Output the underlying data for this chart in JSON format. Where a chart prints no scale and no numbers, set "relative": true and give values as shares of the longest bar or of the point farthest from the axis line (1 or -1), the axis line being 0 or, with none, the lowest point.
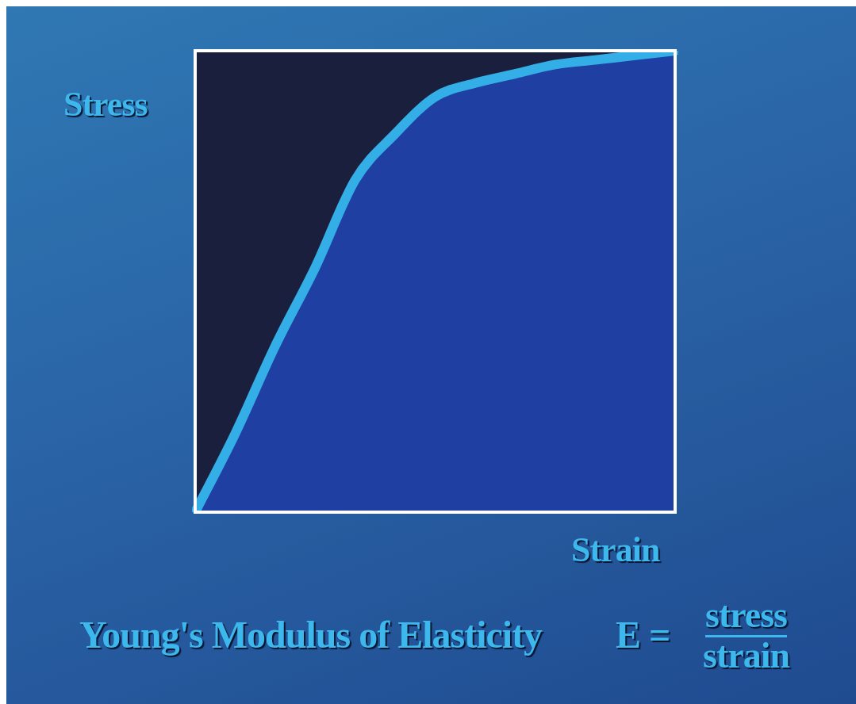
{
  "chart_data": {
    "type": "area",
    "relative": true,
    "title": "Young's Modulus of Elasticity",
    "xlabel": "Strain",
    "ylabel": "Stress",
    "annotations": [
      "E =",
      "stress",
      "strain"
    ],
    "categories": [
      null,
      null,
      null,
      null,
      null,
      null,
      null,
      null,
      null,
      null,
      null,
      null,
      null
    ],
    "series": [
      {
        "color": "#33aee6",
        "values": [
          0,
          0.17,
          0.36,
          0.53,
          0.72,
          0.82,
          0.9,
          0.93,
          0.95,
          0.97,
          0.98,
          0.99,
          1
        ]
      }
    ],
    "legend": false
  }
}
